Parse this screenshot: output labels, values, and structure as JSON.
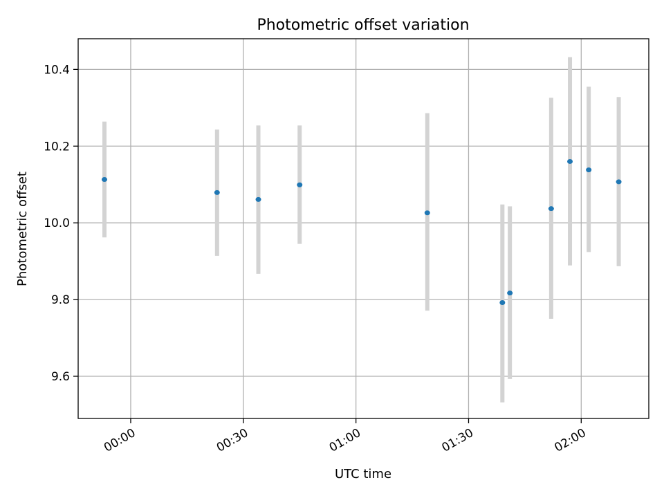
{
  "chart_data": {
    "type": "scatter",
    "title": "Photometric offset variation",
    "xlabel": "UTC time",
    "ylabel": "Photometric offset",
    "x_axis": {
      "kind": "time",
      "format": "HH:MM",
      "range": [
        "23:46",
        "02:18"
      ],
      "ticks": [
        "00:00",
        "00:30",
        "01:00",
        "01:30",
        "02:00"
      ]
    },
    "y_axis": {
      "range": [
        9.49,
        10.48
      ],
      "ticks": [
        9.6,
        9.8,
        10.0,
        10.2,
        10.4
      ],
      "tick_labels": [
        "9.6",
        "9.8",
        "10.0",
        "10.2",
        "10.4"
      ]
    },
    "grid": true,
    "points": [
      {
        "x": "23:53",
        "y": 10.113,
        "err_low": 9.962,
        "err_high": 10.264
      },
      {
        "x": "00:23",
        "y": 10.079,
        "err_low": 9.914,
        "err_high": 10.243
      },
      {
        "x": "00:34",
        "y": 10.061,
        "err_low": 9.867,
        "err_high": 10.254
      },
      {
        "x": "00:45",
        "y": 10.099,
        "err_low": 9.945,
        "err_high": 10.254
      },
      {
        "x": "01:19",
        "y": 10.026,
        "err_low": 9.771,
        "err_high": 10.286
      },
      {
        "x": "01:39",
        "y": 9.792,
        "err_low": 9.532,
        "err_high": 10.048
      },
      {
        "x": "01:41",
        "y": 9.817,
        "err_low": 9.593,
        "err_high": 10.043
      },
      {
        "x": "01:52",
        "y": 10.037,
        "err_low": 9.75,
        "err_high": 10.326
      },
      {
        "x": "01:57",
        "y": 10.16,
        "err_low": 9.889,
        "err_high": 10.432
      },
      {
        "x": "02:02",
        "y": 10.138,
        "err_low": 9.924,
        "err_high": 10.355
      },
      {
        "x": "02:10",
        "y": 10.107,
        "err_low": 9.887,
        "err_high": 10.328
      }
    ],
    "colors": {
      "marker": "#1f77b4",
      "errorbar": "#d3d3d3",
      "grid": "#b0b0b0",
      "axes": "#000000"
    }
  }
}
